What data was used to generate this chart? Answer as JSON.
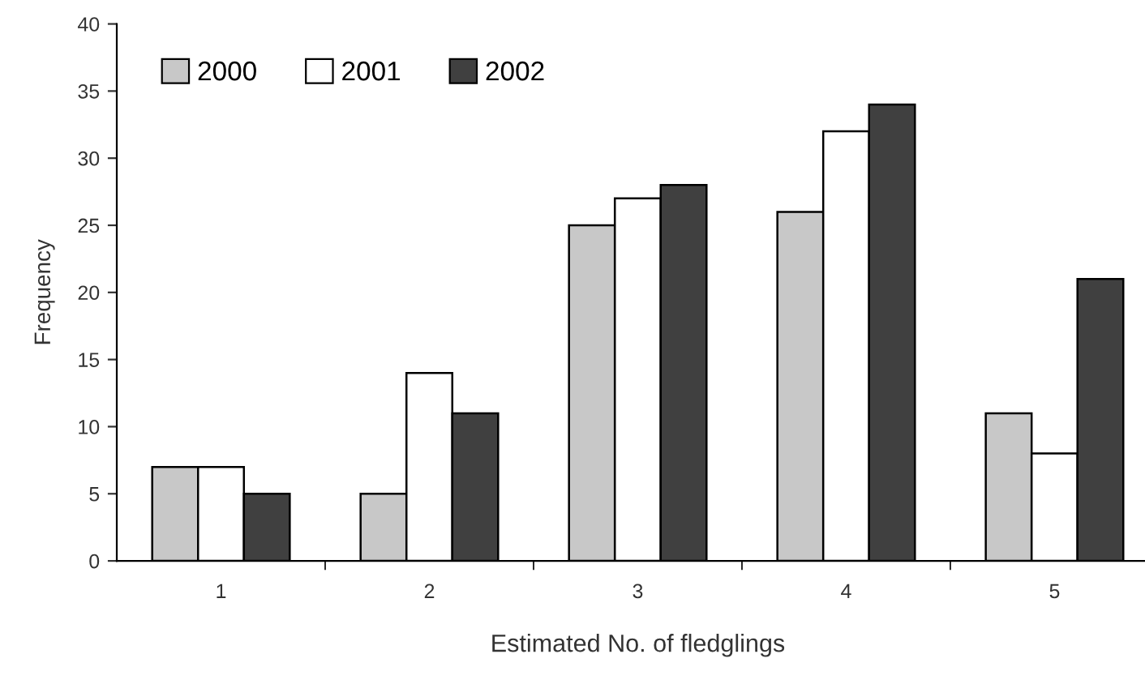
{
  "chart_data": {
    "type": "bar",
    "xlabel": "Estimated No. of fledglings",
    "ylabel": "Frequency",
    "categories": [
      "1",
      "2",
      "3",
      "4",
      "5"
    ],
    "series": [
      {
        "name": "2000",
        "color": "#c8c8c8",
        "values": [
          7,
          5,
          25,
          26,
          11
        ]
      },
      {
        "name": "2001",
        "color": "#ffffff",
        "values": [
          7,
          14,
          27,
          32,
          8
        ]
      },
      {
        "name": "2002",
        "color": "#404040",
        "values": [
          5,
          11,
          28,
          34,
          21
        ]
      }
    ],
    "ylim": [
      0,
      40
    ],
    "yticks": [
      0,
      5,
      10,
      15,
      20,
      25,
      30,
      35,
      40
    ],
    "grid": false,
    "legend": "top left"
  }
}
